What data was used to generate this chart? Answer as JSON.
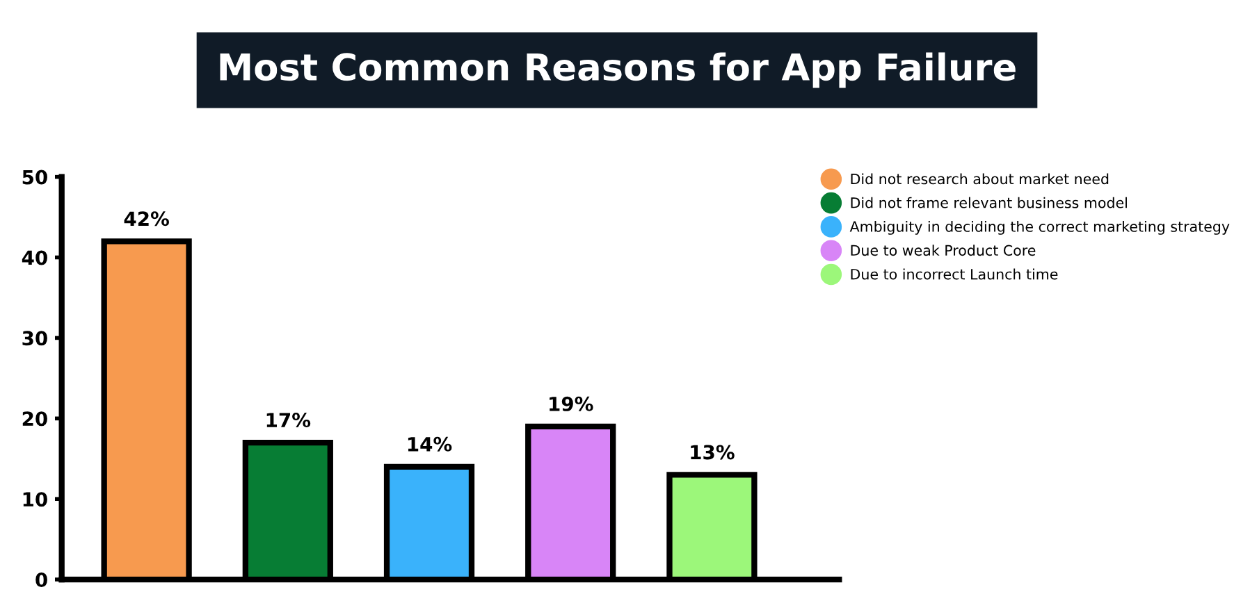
{
  "chart_data": {
    "type": "bar",
    "title": "Most Common Reasons for App Failure",
    "categories": [
      null,
      null,
      null,
      null,
      null
    ],
    "series": [
      {
        "name": "Did not research about market need",
        "color": "#f79a4f",
        "values": [
          42,
          null,
          null,
          null,
          null
        ],
        "value_labels": [
          "42%",
          null,
          null,
          null,
          null
        ]
      },
      {
        "name": "Did not frame relevant business model",
        "color": "#077d34",
        "values": [
          null,
          17,
          null,
          null,
          null
        ],
        "value_labels": [
          null,
          "17%",
          null,
          null,
          null
        ]
      },
      {
        "name": "Ambiguity in deciding the correct marketing strategy",
        "color": "#3ab2fb",
        "values": [
          null,
          null,
          14,
          null,
          null
        ],
        "value_labels": [
          null,
          null,
          "14%",
          null,
          null
        ]
      },
      {
        "name": "Due to weak Product Core",
        "color": "#d885f7",
        "values": [
          null,
          null,
          null,
          19,
          null
        ],
        "value_labels": [
          null,
          null,
          null,
          "19%",
          null
        ]
      },
      {
        "name": "Due to incorrect Launch time",
        "color": "#9cf77a",
        "values": [
          null,
          null,
          null,
          null,
          13
        ],
        "value_labels": [
          null,
          null,
          null,
          null,
          "13%"
        ]
      }
    ],
    "ylim": [
      0,
      50
    ],
    "yticks": [
      0,
      10,
      20,
      30,
      40,
      50
    ],
    "grid": false,
    "legend": "top right"
  }
}
